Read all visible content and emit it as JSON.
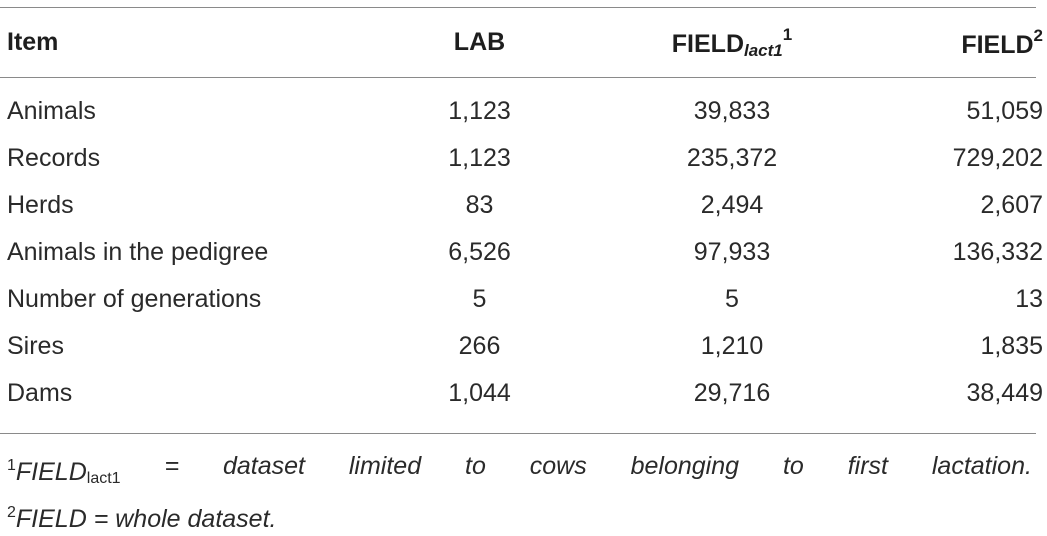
{
  "table": {
    "headers": {
      "item": "Item",
      "lab": "LAB",
      "field_lact1_main": "FIELD",
      "field_lact1_sub": "lact1",
      "field_lact1_sup": "1",
      "field_main": "FIELD",
      "field_sup": "2"
    },
    "rows": [
      {
        "item": "Animals",
        "lab": "1,123",
        "field_lact1": "39,833",
        "field": "51,059"
      },
      {
        "item": "Records",
        "lab": "1,123",
        "field_lact1": "235,372",
        "field": "729,202"
      },
      {
        "item": "Herds",
        "lab": "83",
        "field_lact1": "2,494",
        "field": "2,607"
      },
      {
        "item": "Animals in the pedigree",
        "lab": "6,526",
        "field_lact1": "97,933",
        "field": "136,332"
      },
      {
        "item": "Number of generations",
        "lab": "5",
        "field_lact1": "5",
        "field": "13"
      },
      {
        "item": "Sires",
        "lab": "266",
        "field_lact1": "1,210",
        "field": "1,835"
      },
      {
        "item": "Dams",
        "lab": "1,044",
        "field_lact1": "29,716",
        "field": "38,449"
      }
    ]
  },
  "footnotes": {
    "fn1": {
      "marker": "1",
      "term": "FIELD",
      "term_sub": "lact1",
      "words": [
        "=",
        "dataset",
        "limited",
        "to",
        "cows",
        "belonging",
        "to",
        "first",
        "lactation."
      ]
    },
    "fn2": {
      "marker": "2",
      "text": "FIELD = whole dataset."
    }
  }
}
